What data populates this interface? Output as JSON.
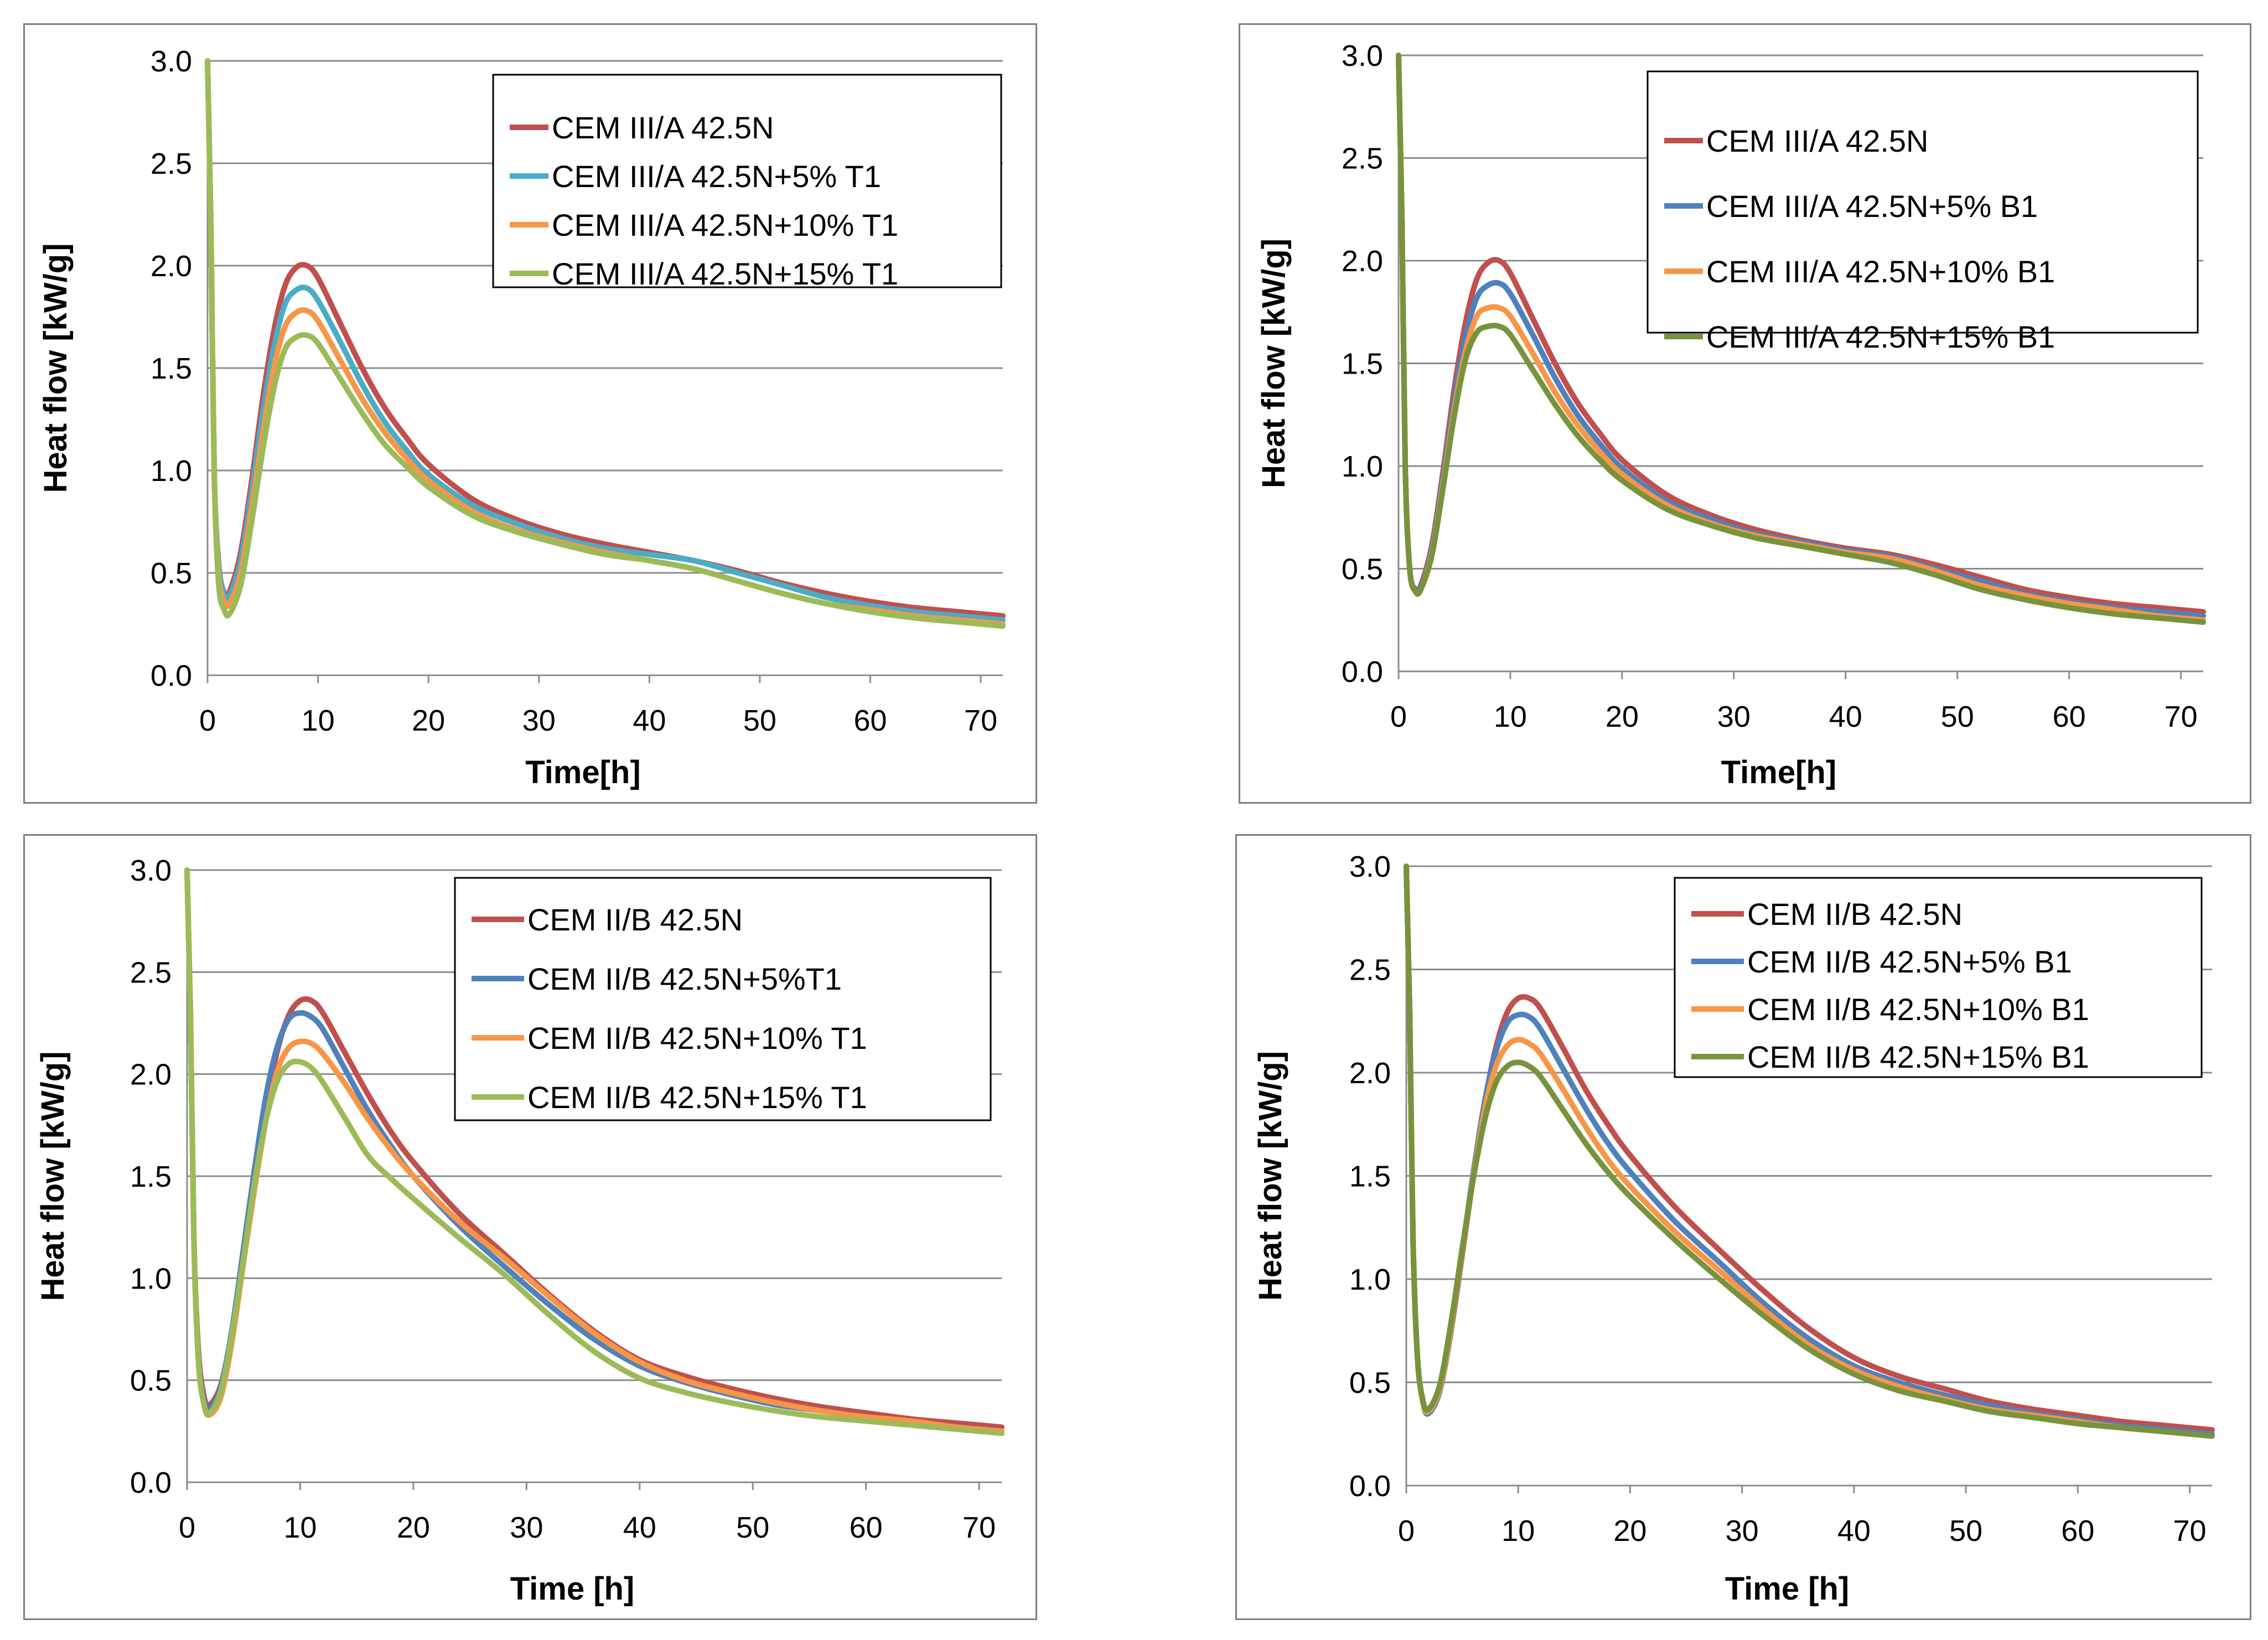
{
  "chart_data": [
    {
      "type": "line",
      "xlabel": "Time[h]",
      "ylabel": "Heat flow [kW/g]",
      "xlim": [
        0,
        72
      ],
      "ylim": [
        0,
        3
      ],
      "x_ticks": [
        "0",
        "10",
        "20",
        "30",
        "40",
        "50",
        "60",
        "70"
      ],
      "y_ticks": [
        "0.0",
        "0.5",
        "1.0",
        "1.5",
        "2.0",
        "2.5",
        "3.0"
      ],
      "grid": "horizontal",
      "legend_position": "top-right",
      "x": [
        0,
        0.3,
        0.6,
        1,
        1.5,
        2,
        3,
        4,
        5,
        6,
        7,
        8,
        9,
        10,
        12,
        14,
        16,
        18,
        20,
        24,
        28,
        32,
        36,
        40,
        44,
        48,
        52,
        56,
        60,
        64,
        68,
        72
      ],
      "series": [
        {
          "name": "CEM III/A 42.5N",
          "color": "#c0504d",
          "values": [
            3.0,
            2.2,
            1.0,
            0.55,
            0.4,
            0.41,
            0.6,
            0.95,
            1.35,
            1.68,
            1.9,
            1.99,
            2.0,
            1.94,
            1.72,
            1.5,
            1.31,
            1.16,
            1.03,
            0.86,
            0.76,
            0.69,
            0.64,
            0.6,
            0.56,
            0.51,
            0.45,
            0.4,
            0.36,
            0.33,
            0.31,
            0.29
          ]
        },
        {
          "name": "CEM III/A 42.5N+5% T1",
          "color": "#4bacc6",
          "values": [
            3.0,
            2.2,
            1.0,
            0.55,
            0.39,
            0.39,
            0.56,
            0.9,
            1.28,
            1.6,
            1.81,
            1.88,
            1.89,
            1.83,
            1.63,
            1.42,
            1.24,
            1.1,
            0.98,
            0.83,
            0.74,
            0.67,
            0.62,
            0.59,
            0.56,
            0.5,
            0.44,
            0.38,
            0.34,
            0.31,
            0.29,
            0.27
          ]
        },
        {
          "name": "CEM III/A 42.5N+10% T1",
          "color": "#f79646",
          "values": [
            3.0,
            2.2,
            1.0,
            0.5,
            0.36,
            0.35,
            0.5,
            0.82,
            1.18,
            1.5,
            1.7,
            1.77,
            1.78,
            1.73,
            1.54,
            1.35,
            1.19,
            1.06,
            0.95,
            0.8,
            0.71,
            0.65,
            0.6,
            0.56,
            0.52,
            0.46,
            0.4,
            0.35,
            0.32,
            0.29,
            0.27,
            0.25
          ]
        },
        {
          "name": "CEM III/A 42.5N+15% T1",
          "color": "#9bbb59",
          "values": [
            3.0,
            2.2,
            1.0,
            0.45,
            0.32,
            0.3,
            0.44,
            0.75,
            1.1,
            1.4,
            1.59,
            1.65,
            1.66,
            1.62,
            1.45,
            1.28,
            1.13,
            1.02,
            0.92,
            0.78,
            0.7,
            0.64,
            0.59,
            0.56,
            0.52,
            0.46,
            0.4,
            0.35,
            0.31,
            0.28,
            0.26,
            0.24
          ]
        }
      ]
    },
    {
      "type": "line",
      "xlabel": "Time[h]",
      "ylabel": "Heat flow [kW/g]",
      "xlim": [
        0,
        72
      ],
      "ylim": [
        0,
        3
      ],
      "x_ticks": [
        "0",
        "10",
        "20",
        "30",
        "40",
        "50",
        "60",
        "70"
      ],
      "y_ticks": [
        "0.0",
        "0.5",
        "1.0",
        "1.5",
        "2.0",
        "2.5",
        "3.0"
      ],
      "grid": "horizontal",
      "legend_position": "top-right",
      "x": [
        0,
        0.3,
        0.6,
        1,
        1.5,
        2,
        3,
        4,
        5,
        6,
        7,
        8,
        9,
        10,
        12,
        14,
        16,
        18,
        20,
        24,
        28,
        32,
        36,
        40,
        44,
        48,
        52,
        56,
        60,
        64,
        68,
        72
      ],
      "series": [
        {
          "name": "CEM III/A 42.5N",
          "color": "#c0504d",
          "values": [
            3.0,
            2.2,
            1.0,
            0.5,
            0.4,
            0.42,
            0.62,
            0.98,
            1.38,
            1.7,
            1.91,
            1.99,
            2.0,
            1.94,
            1.72,
            1.5,
            1.31,
            1.16,
            1.03,
            0.86,
            0.76,
            0.69,
            0.64,
            0.6,
            0.57,
            0.52,
            0.46,
            0.4,
            0.36,
            0.33,
            0.31,
            0.29
          ]
        },
        {
          "name": "CEM III/A 42.5N+5% B1",
          "color": "#4f81bd",
          "values": [
            3.0,
            2.2,
            1.0,
            0.5,
            0.4,
            0.41,
            0.6,
            0.95,
            1.33,
            1.63,
            1.82,
            1.88,
            1.89,
            1.84,
            1.64,
            1.43,
            1.25,
            1.11,
            0.99,
            0.83,
            0.74,
            0.67,
            0.63,
            0.59,
            0.56,
            0.5,
            0.44,
            0.38,
            0.34,
            0.31,
            0.29,
            0.27
          ]
        },
        {
          "name": "CEM III/A 42.5N+10% B1",
          "color": "#f79646",
          "values": [
            3.0,
            2.2,
            1.0,
            0.5,
            0.39,
            0.4,
            0.58,
            0.92,
            1.28,
            1.56,
            1.73,
            1.77,
            1.77,
            1.73,
            1.55,
            1.36,
            1.2,
            1.07,
            0.96,
            0.81,
            0.72,
            0.66,
            0.62,
            0.58,
            0.55,
            0.49,
            0.42,
            0.37,
            0.33,
            0.3,
            0.27,
            0.25
          ]
        },
        {
          "name": "CEM III/A 42.5N+15% B1",
          "color": "#77933c",
          "values": [
            3.0,
            2.2,
            1.0,
            0.5,
            0.39,
            0.4,
            0.57,
            0.9,
            1.25,
            1.52,
            1.65,
            1.68,
            1.68,
            1.64,
            1.47,
            1.3,
            1.15,
            1.03,
            0.93,
            0.79,
            0.71,
            0.65,
            0.61,
            0.57,
            0.53,
            0.47,
            0.4,
            0.35,
            0.31,
            0.28,
            0.26,
            0.24
          ]
        }
      ]
    },
    {
      "type": "line",
      "xlabel": "Time [h]",
      "ylabel": "Heat  flow [kW/g]",
      "xlim": [
        0,
        72
      ],
      "ylim": [
        0,
        3
      ],
      "x_ticks": [
        "0",
        "10",
        "20",
        "30",
        "40",
        "50",
        "60",
        "70"
      ],
      "y_ticks": [
        "0.0",
        "0.5",
        "1.0",
        "1.5",
        "2.0",
        "2.5",
        "3.0"
      ],
      "grid": "horizontal",
      "legend_position": "top-right",
      "x": [
        0,
        0.3,
        0.6,
        1,
        1.5,
        2,
        3,
        4,
        5,
        6,
        7,
        8,
        9,
        10,
        11,
        12,
        14,
        16,
        18,
        20,
        24,
        28,
        32,
        36,
        40,
        44,
        48,
        52,
        56,
        60,
        64,
        68,
        72
      ],
      "series": [
        {
          "name": "CEM II/B 42.5N",
          "color": "#c0504d",
          "values": [
            3.0,
            2.3,
            1.2,
            0.65,
            0.42,
            0.38,
            0.48,
            0.75,
            1.12,
            1.5,
            1.85,
            2.12,
            2.29,
            2.36,
            2.36,
            2.3,
            2.1,
            1.9,
            1.72,
            1.57,
            1.32,
            1.12,
            0.92,
            0.74,
            0.6,
            0.52,
            0.46,
            0.41,
            0.37,
            0.34,
            0.31,
            0.29,
            0.27
          ]
        },
        {
          "name": "CEM II/B 42.5N+5%T1",
          "color": "#4f81bd",
          "values": [
            3.0,
            2.3,
            1.2,
            0.62,
            0.4,
            0.36,
            0.47,
            0.76,
            1.15,
            1.55,
            1.9,
            2.14,
            2.27,
            2.3,
            2.28,
            2.22,
            2.02,
            1.82,
            1.65,
            1.5,
            1.26,
            1.06,
            0.87,
            0.7,
            0.57,
            0.49,
            0.43,
            0.38,
            0.35,
            0.32,
            0.29,
            0.27,
            0.25
          ]
        },
        {
          "name": "CEM II/B 42.5N+10% T1",
          "color": "#f79646",
          "values": [
            3.0,
            2.3,
            1.2,
            0.6,
            0.38,
            0.33,
            0.42,
            0.7,
            1.08,
            1.45,
            1.78,
            2.02,
            2.13,
            2.16,
            2.15,
            2.1,
            1.95,
            1.78,
            1.63,
            1.5,
            1.28,
            1.1,
            0.91,
            0.73,
            0.59,
            0.5,
            0.44,
            0.39,
            0.35,
            0.32,
            0.3,
            0.27,
            0.25
          ]
        },
        {
          "name": "CEM II/B 42.5N+15% T1",
          "color": "#9bbb59",
          "values": [
            3.0,
            2.3,
            1.2,
            0.6,
            0.38,
            0.34,
            0.45,
            0.74,
            1.1,
            1.48,
            1.78,
            1.97,
            2.05,
            2.06,
            2.03,
            1.96,
            1.78,
            1.6,
            1.49,
            1.39,
            1.2,
            1.02,
            0.82,
            0.64,
            0.51,
            0.44,
            0.39,
            0.35,
            0.32,
            0.3,
            0.28,
            0.26,
            0.24
          ]
        }
      ]
    },
    {
      "type": "line",
      "xlabel": "Time [h]",
      "ylabel": "Heat flow [kW/g]",
      "xlim": [
        0,
        72
      ],
      "ylim": [
        0,
        3
      ],
      "x_ticks": [
        "0",
        "10",
        "20",
        "30",
        "40",
        "50",
        "60",
        "70"
      ],
      "y_ticks": [
        "0.0",
        "0.5",
        "1.0",
        "1.5",
        "2.0",
        "2.5",
        "3.0"
      ],
      "grid": "horizontal",
      "legend_position": "top-right",
      "x": [
        0,
        0.3,
        0.6,
        1,
        1.5,
        2,
        3,
        4,
        5,
        6,
        7,
        8,
        9,
        10,
        11,
        12,
        14,
        16,
        18,
        20,
        24,
        28,
        32,
        36,
        40,
        44,
        48,
        52,
        56,
        60,
        64,
        68,
        72
      ],
      "series": [
        {
          "name": "CEM II/B 42.5N",
          "color": "#c0504d",
          "values": [
            3.0,
            2.3,
            1.2,
            0.62,
            0.4,
            0.35,
            0.46,
            0.75,
            1.12,
            1.5,
            1.85,
            2.12,
            2.29,
            2.36,
            2.36,
            2.31,
            2.12,
            1.92,
            1.75,
            1.6,
            1.35,
            1.14,
            0.94,
            0.76,
            0.62,
            0.53,
            0.47,
            0.41,
            0.37,
            0.34,
            0.31,
            0.29,
            0.27
          ]
        },
        {
          "name": "CEM II/B 42.5N+5% B1",
          "color": "#4f81bd",
          "values": [
            3.0,
            2.3,
            1.2,
            0.62,
            0.4,
            0.35,
            0.46,
            0.76,
            1.14,
            1.52,
            1.86,
            2.1,
            2.24,
            2.28,
            2.27,
            2.21,
            2.02,
            1.83,
            1.66,
            1.52,
            1.28,
            1.08,
            0.88,
            0.71,
            0.58,
            0.5,
            0.44,
            0.39,
            0.35,
            0.32,
            0.29,
            0.27,
            0.25
          ]
        },
        {
          "name": "CEM II/B 42.5N+10% B1",
          "color": "#f79646",
          "values": [
            3.0,
            2.3,
            1.2,
            0.62,
            0.4,
            0.36,
            0.47,
            0.77,
            1.14,
            1.5,
            1.82,
            2.03,
            2.13,
            2.16,
            2.14,
            2.09,
            1.92,
            1.74,
            1.58,
            1.45,
            1.23,
            1.04,
            0.85,
            0.68,
            0.56,
            0.48,
            0.42,
            0.37,
            0.34,
            0.31,
            0.28,
            0.26,
            0.24
          ]
        },
        {
          "name": "CEM II/B 42.5N+15% B1",
          "color": "#77933c",
          "values": [
            3.0,
            2.3,
            1.2,
            0.62,
            0.41,
            0.37,
            0.49,
            0.79,
            1.15,
            1.49,
            1.77,
            1.95,
            2.03,
            2.05,
            2.03,
            1.98,
            1.82,
            1.66,
            1.52,
            1.4,
            1.19,
            1.0,
            0.82,
            0.66,
            0.54,
            0.46,
            0.41,
            0.36,
            0.33,
            0.3,
            0.28,
            0.26,
            0.24
          ]
        }
      ]
    }
  ]
}
